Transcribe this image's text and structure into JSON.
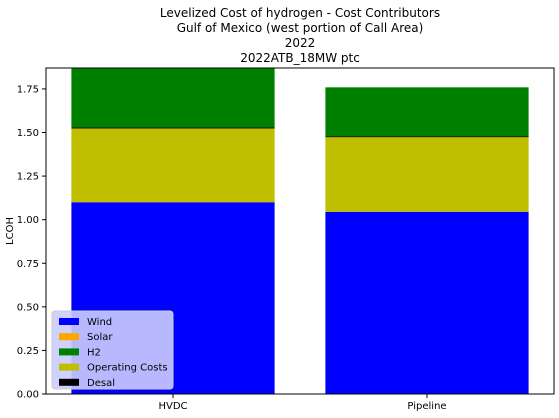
{
  "chart_data": {
    "type": "bar",
    "stacked": true,
    "title_lines": [
      "Levelized Cost of hydrogen - Cost Contributors",
      "Gulf of Mexico (west portion of Call Area)",
      "2022",
      "2022ATB_18MW ptc"
    ],
    "xlabel": "",
    "ylabel": "LCOH",
    "categories": [
      "HVDC",
      "Pipeline"
    ],
    "ylim": [
      0,
      1.87
    ],
    "yticks": [
      "0.00",
      "0.25",
      "0.50",
      "0.75",
      "1.00",
      "1.25",
      "1.50",
      "1.75"
    ],
    "ytick_values": [
      0,
      0.25,
      0.5,
      0.75,
      1.0,
      1.25,
      1.5,
      1.75
    ],
    "series": [
      {
        "name": "Wind",
        "color": "#0000ff",
        "values": [
          1.1,
          1.045
        ]
      },
      {
        "name": "Solar",
        "color": "#ffa500",
        "values": [
          0.0,
          0.0
        ]
      },
      {
        "name": "Operating Costs",
        "color": "#bfbf00",
        "values": [
          0.425,
          0.43
        ]
      },
      {
        "name": "Desal",
        "color": "#000000",
        "values": [
          0.004,
          0.004
        ]
      },
      {
        "name": "H2",
        "color": "#008000",
        "values": [
          0.35,
          0.28
        ]
      }
    ],
    "legend": {
      "position": "lower-left",
      "entries": [
        {
          "name": "Wind",
          "color": "#0000ff"
        },
        {
          "name": "Solar",
          "color": "#ffa500"
        },
        {
          "name": "H2",
          "color": "#008000"
        },
        {
          "name": "Operating Costs",
          "color": "#bfbf00"
        },
        {
          "name": "Desal",
          "color": "#000000"
        }
      ],
      "background": "#ccccff"
    }
  }
}
